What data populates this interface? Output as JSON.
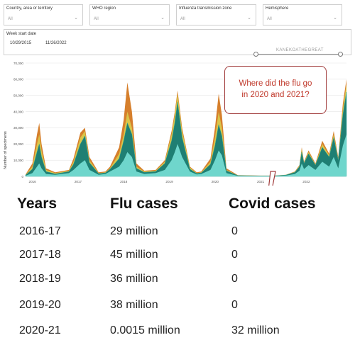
{
  "filters": [
    {
      "label": "Country, area or territory",
      "value": "All"
    },
    {
      "label": "WHO region",
      "value": "All"
    },
    {
      "label": "Influenza transmission zone",
      "value": "All"
    },
    {
      "label": "Hemisphere",
      "value": "All"
    }
  ],
  "week": {
    "label": "Week start date",
    "start": "10/29/2015",
    "end": "11/26/2022",
    "watermark": "KANEKOATHEGREAT"
  },
  "callout": {
    "line1": "Where did the flu go",
    "line2": "in 2020 and 2021?"
  },
  "table": {
    "headers": [
      "Years",
      "Flu cases",
      "Covid cases"
    ],
    "rows": [
      [
        "2016-17",
        "29 million",
        "0"
      ],
      [
        "2017-18",
        "45 million",
        "0"
      ],
      [
        "2018-19",
        "36 million",
        "0"
      ],
      [
        "2019-20",
        "38 million",
        "0"
      ],
      [
        "2020-21",
        "0.0015 million",
        "32 million"
      ]
    ]
  },
  "colors": {
    "orange": "#d67f2c",
    "yellow": "#d9c54a",
    "teal_dark": "#1f7f73",
    "teal_mid": "#2aa497",
    "teal_light": "#6fd6cc",
    "callout_red": "#c0392b"
  },
  "chart_data": {
    "type": "area",
    "ylabel": "Number of specimens",
    "ylim": [
      0,
      70000
    ],
    "yticks": [
      "0",
      "10,000",
      "20,000",
      "30,000",
      "40,000",
      "50,000",
      "60,000",
      "70,000"
    ],
    "xticks": [
      "2016",
      "2017",
      "2018",
      "2019",
      "2020",
      "2021",
      "2022"
    ],
    "x": [
      2015.85,
      2016.0,
      2016.1,
      2016.15,
      2016.2,
      2016.3,
      2016.5,
      2016.8,
      2016.9,
      2017.05,
      2017.15,
      2017.25,
      2017.45,
      2017.6,
      2017.7,
      2017.9,
      2018.0,
      2018.08,
      2018.18,
      2018.28,
      2018.45,
      2018.7,
      2018.9,
      2019.05,
      2019.12,
      2019.18,
      2019.28,
      2019.45,
      2019.6,
      2019.7,
      2019.9,
      2020.0,
      2020.08,
      2020.15,
      2020.25,
      2020.5,
      2021.0,
      2021.3,
      2021.55,
      2021.75,
      2021.85,
      2021.9,
      2021.95,
      2022.05,
      2022.2,
      2022.35,
      2022.5,
      2022.6,
      2022.7,
      2022.8,
      2022.88
    ],
    "series": [
      {
        "values": [
          1200,
          8000,
          26000,
          33000,
          20000,
          5000,
          2500,
          4000,
          11000,
          27000,
          30000,
          12000,
          2500,
          3000,
          6000,
          18000,
          35000,
          58000,
          40000,
          8000,
          3500,
          4000,
          10000,
          28000,
          40000,
          53000,
          30000,
          6000,
          2500,
          3000,
          11000,
          30000,
          51000,
          38000,
          5000,
          800,
          500,
          500,
          1000,
          3000,
          7000,
          18000,
          9000,
          16000,
          8000,
          22000,
          14000,
          28000,
          12000,
          45000,
          60000
        ]
      },
      {
        "values": [
          1000,
          6000,
          20000,
          26000,
          16000,
          4000,
          2000,
          3500,
          9000,
          24000,
          28000,
          10000,
          2000,
          2500,
          5000,
          14000,
          26000,
          40000,
          30000,
          6000,
          3000,
          3500,
          9000,
          26000,
          38000,
          51000,
          28000,
          5500,
          2000,
          2500,
          9000,
          24000,
          40000,
          30000,
          4000,
          600,
          400,
          400,
          900,
          2800,
          6500,
          17000,
          8500,
          15000,
          7500,
          20000,
          13000,
          26000,
          11000,
          42000,
          57000
        ]
      },
      {
        "values": [
          800,
          4500,
          15000,
          20000,
          12000,
          3000,
          1500,
          3000,
          7500,
          20000,
          25000,
          8500,
          1700,
          2200,
          4500,
          11000,
          22000,
          33000,
          26000,
          5000,
          2500,
          3000,
          8000,
          22000,
          33000,
          46000,
          24000,
          4500,
          1800,
          2200,
          7500,
          19000,
          32000,
          25000,
          3500,
          500,
          300,
          300,
          800,
          2500,
          6000,
          15000,
          8000,
          14000,
          7000,
          18000,
          12000,
          24000,
          10000,
          38000,
          52000
        ]
      },
      {
        "values": [
          400,
          2000,
          6000,
          8000,
          5000,
          1500,
          1000,
          2000,
          4000,
          8000,
          10000,
          4000,
          1000,
          1500,
          3000,
          6000,
          10000,
          15000,
          12000,
          3000,
          1500,
          2000,
          4000,
          10000,
          15000,
          20000,
          12000,
          3000,
          1200,
          1500,
          4000,
          10000,
          16000,
          13000,
          2000,
          300,
          200,
          200,
          500,
          1500,
          3500,
          8000,
          4500,
          7000,
          4000,
          9000,
          6000,
          12000,
          5000,
          19000,
          26000
        ]
      }
    ]
  }
}
